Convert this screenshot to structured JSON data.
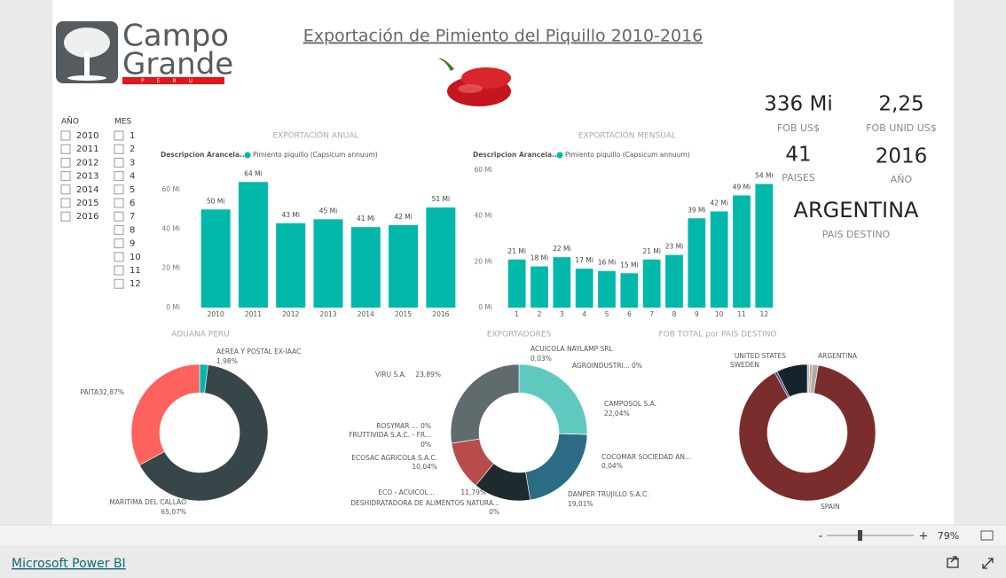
{
  "header": {
    "logo": {
      "line1": "Campo",
      "line2": "Grande",
      "tag": "PERU"
    },
    "title": "Exportación de Pimiento del Piquillo 2010-2016"
  },
  "slicers": [
    {
      "title": "AÑO",
      "items": [
        "2010",
        "2011",
        "2012",
        "2013",
        "2014",
        "2015",
        "2016"
      ]
    },
    {
      "title": "MES",
      "items": [
        "1",
        "2",
        "3",
        "4",
        "5",
        "6",
        "7",
        "8",
        "9",
        "10",
        "11",
        "12"
      ]
    }
  ],
  "cards": [
    {
      "value": "336 Mi",
      "label": "FOB US$"
    },
    {
      "value": "2,25",
      "label": "FOB UNID US$"
    },
    {
      "value": "41",
      "label": "PAISES"
    },
    {
      "value": "2016",
      "label": "AÑO"
    },
    {
      "value": "ARGENTINA",
      "label": "PAIS DESTINO"
    }
  ],
  "chart_data": [
    {
      "type": "bar",
      "title": "EXPORTACIÓN ANUAL",
      "legend_title": "Descripcion Arancela...",
      "categories": [
        "2010",
        "2011",
        "2012",
        "2013",
        "2014",
        "2015",
        "2016"
      ],
      "series": [
        {
          "name": "Pimiento piquillo (Capsicum annuum)",
          "color": "#01B8AA",
          "values": [
            50,
            64,
            43,
            45,
            41,
            42,
            51
          ],
          "value_labels": [
            "50 Mi",
            "64 Mi",
            "43 Mi",
            "45 Mi",
            "41 Mi",
            "42 Mi",
            "51 Mi"
          ]
        }
      ],
      "ylim": [
        0,
        70
      ],
      "yticks": [
        {
          "value": 0,
          "label": "0 Mi"
        },
        {
          "value": 20,
          "label": "20 Mi"
        },
        {
          "value": 40,
          "label": "40 Mi"
        },
        {
          "value": 60,
          "label": "60 Mi"
        }
      ]
    },
    {
      "type": "bar",
      "title": "EXPORTACIÓN MENSUAL",
      "legend_title": "Descripcion Arancela...",
      "categories": [
        "1",
        "2",
        "3",
        "4",
        "5",
        "6",
        "7",
        "8",
        "9",
        "10",
        "11",
        "12"
      ],
      "series": [
        {
          "name": "Pimiento piquillo (Capsicum annuum)",
          "color": "#01B8AA",
          "values": [
            21,
            18,
            22,
            17,
            16,
            15,
            21,
            23,
            39,
            42,
            49,
            54
          ],
          "value_labels": [
            "21 Mi",
            "18 Mi",
            "22 Mi",
            "17 Mi",
            "16 Mi",
            "15 Mi",
            "21 Mi",
            "23 Mi",
            "39 Mi",
            "42 Mi",
            "49 Mi",
            "54 Mi"
          ]
        }
      ],
      "ylim": [
        0,
        60
      ],
      "yticks": [
        {
          "value": 0,
          "label": "0 Mi"
        },
        {
          "value": 20,
          "label": "20 Mi"
        },
        {
          "value": 40,
          "label": "40 Mi"
        },
        {
          "value": 60,
          "label": "60 Mi"
        }
      ]
    },
    {
      "type": "donut",
      "title": "ADUANA PERU",
      "categories": [
        "AEREA Y POSTAL EX-IAAC",
        "MARITIMA DEL CALLAO",
        "PAITA"
      ],
      "values": [
        1.98,
        65.07,
        32.87
      ],
      "value_labels": [
        "1,98%",
        "65,07%",
        "32,87%"
      ],
      "colors": [
        "#01B8AA",
        "#374649",
        "#FD625E"
      ]
    },
    {
      "type": "donut",
      "title": "EXPORTADORES",
      "categories": [
        "ACUICOLA NAYLAMP SRL",
        "AGROINDUSTRI...",
        "CAMPOSOL S.A.",
        "COCOMAR SOCIEDAD AN...",
        "DANPER TRUJILLO S.A.C.",
        "DESHIDRATADORA DE ALIMENTOS NATURA...",
        "ECO - ACUICOL...",
        "ECOSAC AGRICOLA S.A.C.",
        "FRUTTIVIDA S.A.C. - FR...",
        "ROSYMAR ...",
        "VIRU S.A."
      ],
      "values": [
        0.03,
        0,
        22.04,
        0.04,
        19.01,
        0,
        11.79,
        10.04,
        0,
        0,
        23.89
      ],
      "value_labels": [
        "0,03%",
        "0%",
        "22,04%",
        "0,04%",
        "19,01%",
        "0%",
        "11,79%",
        "10,04%",
        "0%",
        "0%",
        "23,89%"
      ],
      "colors": [
        "#F2C80F",
        "#F2C80F",
        "#5FC9BF",
        "#FE9666",
        "#2B6C84",
        "#A66999",
        "#1F2A2E",
        "#B84B4B",
        "#3599B8",
        "#DFBFBF",
        "#5F6B6D"
      ]
    },
    {
      "type": "donut",
      "title": "FOB TOTAL por PAIS DESTINO",
      "categories": [
        null,
        null,
        "ARGENTINA",
        "SPAIN",
        "SWEDEN",
        "UNITED STATES"
      ],
      "values": [
        0.6,
        0.6,
        1.4,
        89.5,
        0.6,
        7.3
      ],
      "colors": [
        "#8AD4EB",
        "#FE9666",
        "#A6B0B5",
        "#7B2D2D",
        "#3E4B8C",
        "#17232B"
      ]
    }
  ],
  "footer": {
    "zoom_out": "-",
    "zoom_in": "+",
    "zoom": "79%",
    "brand": "Microsoft Power BI"
  }
}
